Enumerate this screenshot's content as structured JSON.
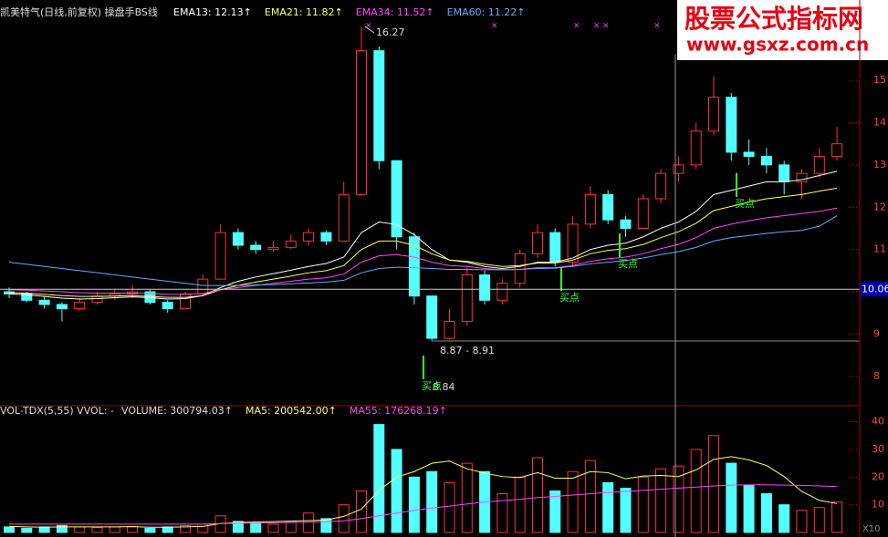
{
  "chart_data": [
    {
      "type": "candlestick",
      "title": "凯美特气(日线,前复权) 操盘手BS线",
      "up_color": "#ff3232",
      "down_color": "#54ffff",
      "ohlc": [
        [
          10.0,
          10.1,
          9.85,
          9.95
        ],
        [
          9.95,
          10.0,
          9.75,
          9.8
        ],
        [
          9.8,
          9.9,
          9.6,
          9.7
        ],
        [
          9.7,
          9.75,
          9.3,
          9.6
        ],
        [
          9.6,
          9.85,
          9.55,
          9.75
        ],
        [
          9.75,
          10.0,
          9.7,
          9.9
        ],
        [
          9.9,
          10.05,
          9.8,
          9.95
        ],
        [
          9.95,
          10.15,
          9.85,
          10.0
        ],
        [
          10.0,
          10.05,
          9.7,
          9.75
        ],
        [
          9.75,
          9.8,
          9.5,
          9.6
        ],
        [
          9.6,
          10.0,
          9.6,
          9.95
        ],
        [
          9.95,
          10.4,
          9.9,
          10.3
        ],
        [
          10.3,
          11.6,
          10.3,
          11.4
        ],
        [
          11.4,
          11.5,
          11.0,
          11.1
        ],
        [
          11.1,
          11.2,
          10.9,
          11.0
        ],
        [
          11.0,
          11.2,
          10.95,
          11.05
        ],
        [
          11.05,
          11.35,
          11.0,
          11.2
        ],
        [
          11.2,
          11.5,
          11.1,
          11.4
        ],
        [
          11.4,
          11.45,
          11.1,
          11.2
        ],
        [
          11.2,
          12.6,
          11.2,
          12.3
        ],
        [
          12.3,
          16.27,
          12.3,
          15.7
        ],
        [
          15.7,
          15.8,
          12.9,
          13.1
        ],
        [
          13.1,
          13.1,
          11.0,
          11.3
        ],
        [
          11.3,
          11.4,
          9.7,
          9.9
        ],
        [
          9.9,
          9.9,
          8.84,
          8.9
        ],
        [
          8.9,
          9.6,
          8.87,
          9.3
        ],
        [
          9.3,
          10.6,
          9.2,
          10.4
        ],
        [
          10.4,
          10.5,
          9.7,
          9.8
        ],
        [
          9.8,
          10.3,
          9.7,
          10.2
        ],
        [
          10.2,
          11.0,
          10.1,
          10.9
        ],
        [
          10.9,
          11.6,
          10.8,
          11.4
        ],
        [
          11.4,
          11.5,
          10.6,
          10.7
        ],
        [
          10.7,
          11.8,
          10.6,
          11.6
        ],
        [
          11.6,
          12.5,
          11.5,
          12.3
        ],
        [
          12.3,
          12.4,
          11.6,
          11.7
        ],
        [
          11.7,
          11.8,
          11.3,
          11.5
        ],
        [
          11.5,
          12.3,
          11.5,
          12.2
        ],
        [
          12.2,
          12.9,
          12.1,
          12.8
        ],
        [
          12.8,
          13.2,
          12.6,
          13.0
        ],
        [
          13.0,
          14.0,
          12.9,
          13.8
        ],
        [
          13.8,
          15.1,
          13.7,
          14.6
        ],
        [
          14.6,
          14.7,
          13.1,
          13.3
        ],
        [
          13.3,
          13.6,
          13.0,
          13.2
        ],
        [
          13.2,
          13.4,
          12.8,
          13.0
        ],
        [
          13.0,
          13.1,
          12.3,
          12.6
        ],
        [
          12.6,
          12.9,
          12.2,
          12.8
        ],
        [
          12.8,
          13.4,
          12.7,
          13.2
        ],
        [
          13.2,
          13.9,
          13.1,
          13.5
        ]
      ],
      "series": [
        {
          "name": "EMA13: 12.13↑",
          "color": "#ffffff",
          "values": [
            9.95,
            9.93,
            9.89,
            9.85,
            9.83,
            9.84,
            9.86,
            9.88,
            9.86,
            9.83,
            9.84,
            9.91,
            10.1,
            10.25,
            10.35,
            10.43,
            10.51,
            10.6,
            10.67,
            10.82,
            11.4,
            11.65,
            11.59,
            11.35,
            11.0,
            10.75,
            10.7,
            10.6,
            10.55,
            10.6,
            10.7,
            10.7,
            10.8,
            11.0,
            11.1,
            11.15,
            11.3,
            11.5,
            11.65,
            11.9,
            12.3,
            12.4,
            12.5,
            12.6,
            12.6,
            12.65,
            12.75,
            12.85
          ]
        },
        {
          "name": "EMA21: 11.82↑",
          "color": "#ffff66",
          "values": [
            9.98,
            9.97,
            9.94,
            9.91,
            9.89,
            9.89,
            9.9,
            9.91,
            9.89,
            9.87,
            9.87,
            9.91,
            10.05,
            10.15,
            10.23,
            10.3,
            10.37,
            10.45,
            10.5,
            10.62,
            11.0,
            11.2,
            11.2,
            11.1,
            10.9,
            10.75,
            10.72,
            10.65,
            10.6,
            10.62,
            10.68,
            10.68,
            10.75,
            10.9,
            10.98,
            11.02,
            11.12,
            11.28,
            11.42,
            11.62,
            11.92,
            12.02,
            12.12,
            12.2,
            12.25,
            12.3,
            12.38,
            12.45
          ]
        },
        {
          "name": "EMA34: 11.52↑",
          "color": "#ff44ff",
          "values": [
            10.05,
            10.04,
            10.02,
            10.0,
            9.98,
            9.97,
            9.97,
            9.97,
            9.96,
            9.94,
            9.94,
            9.96,
            10.05,
            10.1,
            10.15,
            10.2,
            10.25,
            10.3,
            10.33,
            10.42,
            10.7,
            10.85,
            10.88,
            10.82,
            10.7,
            10.62,
            10.6,
            10.55,
            10.52,
            10.53,
            10.57,
            10.57,
            10.62,
            10.72,
            10.78,
            10.82,
            10.9,
            11.02,
            11.12,
            11.28,
            11.5,
            11.6,
            11.68,
            11.75,
            11.8,
            11.85,
            11.9,
            11.98
          ]
        },
        {
          "name": "EMA60: 11.22↑",
          "color": "#66aaff",
          "values": [
            10.7,
            10.65,
            10.6,
            10.55,
            10.5,
            10.45,
            10.4,
            10.35,
            10.3,
            10.25,
            10.2,
            10.15,
            10.15,
            10.15,
            10.16,
            10.17,
            10.19,
            10.21,
            10.23,
            10.27,
            10.45,
            10.55,
            10.58,
            10.57,
            10.55,
            10.53,
            10.53,
            10.52,
            10.52,
            10.53,
            10.55,
            10.56,
            10.6,
            10.66,
            10.7,
            10.74,
            10.8,
            10.88,
            10.95,
            11.05,
            11.2,
            11.28,
            11.33,
            11.38,
            11.42,
            11.45,
            11.55,
            11.8
          ]
        }
      ],
      "annotations": [
        "16.27",
        "8.87 - 8.91",
        "8.84"
      ],
      "buy_labels": [
        "买点",
        "买点",
        "买点",
        "买点"
      ],
      "crosshair_value": 10.06,
      "ylim": [
        7.35,
        16.36
      ],
      "yticks": [
        8,
        9,
        10,
        11,
        12,
        13,
        14,
        15
      ]
    },
    {
      "type": "volume",
      "title": "VOL-TDX(5,55) VVOL: -",
      "values": [
        2,
        1.5,
        2,
        2.5,
        2,
        1.8,
        2,
        2.2,
        1.5,
        2,
        2.5,
        3,
        6,
        4,
        3.5,
        3,
        4,
        7,
        5,
        10,
        15,
        39,
        30,
        20,
        22,
        18,
        25,
        22,
        14,
        20,
        27,
        15,
        22,
        26,
        18,
        16,
        20,
        23,
        24,
        30,
        35,
        25,
        17,
        14,
        10,
        8,
        9,
        11
      ],
      "volume_label": {
        "name": "VOLUME: 300794.03↑",
        "color": "#dddddd"
      },
      "series": [
        {
          "name": "MA5: 200542.00↑",
          "color": "#ffff66",
          "values": [
            2.2,
            2.0,
            1.9,
            2.0,
            2.0,
            2.0,
            2.0,
            2.1,
            1.9,
            1.9,
            2.0,
            2.2,
            3.2,
            3.6,
            3.8,
            3.9,
            4.1,
            4.3,
            4.5,
            5.8,
            8.4,
            15.2,
            20,
            22,
            25,
            25.8,
            23,
            21.4,
            20.2,
            19.8,
            21.6,
            19.6,
            19.6,
            22,
            21.6,
            19.4,
            20.4,
            20.6,
            20.2,
            22.6,
            26.4,
            27.4,
            26.2,
            24.2,
            20.2,
            14.8,
            11.6,
            10.4
          ]
        },
        {
          "name": "MA55: 176268.19↑",
          "color": "#ff44ff",
          "values": [
            3,
            3,
            3,
            3,
            3,
            3,
            3,
            3,
            3,
            3,
            3,
            3,
            3.2,
            3.3,
            3.4,
            3.5,
            3.6,
            3.8,
            3.9,
            4.2,
            5,
            6,
            7,
            8,
            8.8,
            9.5,
            10.3,
            11,
            11.5,
            12,
            12.6,
            13,
            13.5,
            14,
            14.4,
            14.8,
            15.2,
            15.6,
            16,
            16.4,
            16.8,
            17.1,
            17.2,
            17.2,
            17.1,
            17,
            16.8,
            16.6
          ]
        }
      ],
      "unit_label": "X10",
      "ylim": [
        0,
        42.5
      ],
      "yticks": [
        10,
        20,
        30,
        40
      ]
    }
  ],
  "watermark": {
    "title": "股票公式指标网",
    "url": "www.gsxz.com.cn"
  }
}
